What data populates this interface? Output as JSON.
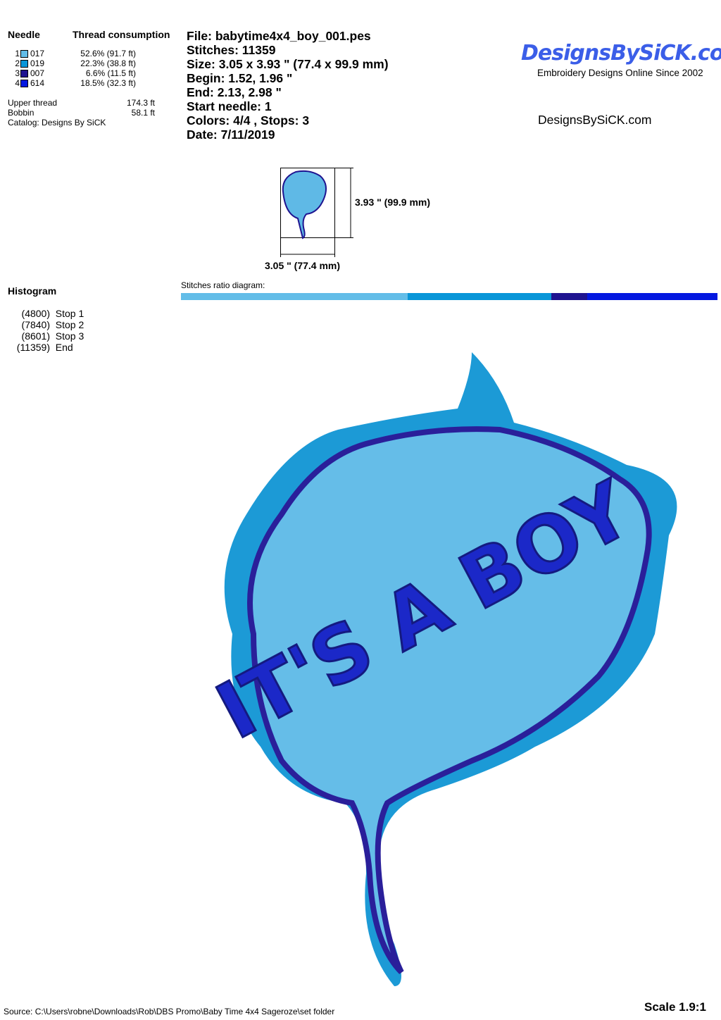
{
  "needle_header": "Needle",
  "thread_header": "Thread consumption",
  "needles": [
    {
      "num": "1",
      "code": "017",
      "consumption": "52.6% (91.7 ft)",
      "color": "#63bde8"
    },
    {
      "num": "2",
      "code": "019",
      "consumption": "22.3% (38.8 ft)",
      "color": "#0996d8"
    },
    {
      "num": "3",
      "code": "007",
      "consumption": "6.6% (11.5 ft)",
      "color": "#1f1490"
    },
    {
      "num": "4",
      "code": "614",
      "consumption": "18.5% (32.3 ft)",
      "color": "#0418e0"
    }
  ],
  "upper_thread_label": "Upper thread",
  "upper_thread": "174.3 ft",
  "bobbin_label": "Bobbin",
  "bobbin": "58.1 ft",
  "catalog": "Catalog: Designs By SiCK",
  "info": {
    "file": "File: babytime4x4_boy_001.pes",
    "stitches": "Stitches: 11359",
    "size": "Size: 3.05 x 3.93 \" (77.4 x 99.9 mm)",
    "begin": "Begin: 1.52, 1.96 \"",
    "end": "End: 2.13, 2.98 \"",
    "start_needle": "Start needle: 1",
    "colors": "Colors: 4/4 , Stops: 3",
    "date": "Date: 7/11/2019"
  },
  "logo": {
    "text": "DesignsBySiCK.com",
    "tagline": "Embroidery Designs Online Since 2002"
  },
  "site": "DesignsBySiCK.com",
  "preview": {
    "height_label": "3.93 \" (99.9 mm)",
    "width_label": "3.05 \" (77.4 mm)"
  },
  "histogram_title": "Histogram",
  "stops": [
    {
      "count": "(4800)",
      "label": "Stop 1",
      "value": 4800
    },
    {
      "count": "(7840)",
      "label": "Stop 2",
      "value": 7840
    },
    {
      "count": "(8601)",
      "label": "Stop 3",
      "value": 8601
    },
    {
      "count": "(11359)",
      "label": "End",
      "value": 11359
    }
  ],
  "ratio_label": "Stitches ratio diagram:",
  "design_text": "IT'S A BOY",
  "source": "Source: C:\\Users\\robne\\Downloads\\Rob\\DBS Promo\\Baby Time 4x4 Sageroze\\set folder",
  "scale": "Scale 1.9:1"
}
